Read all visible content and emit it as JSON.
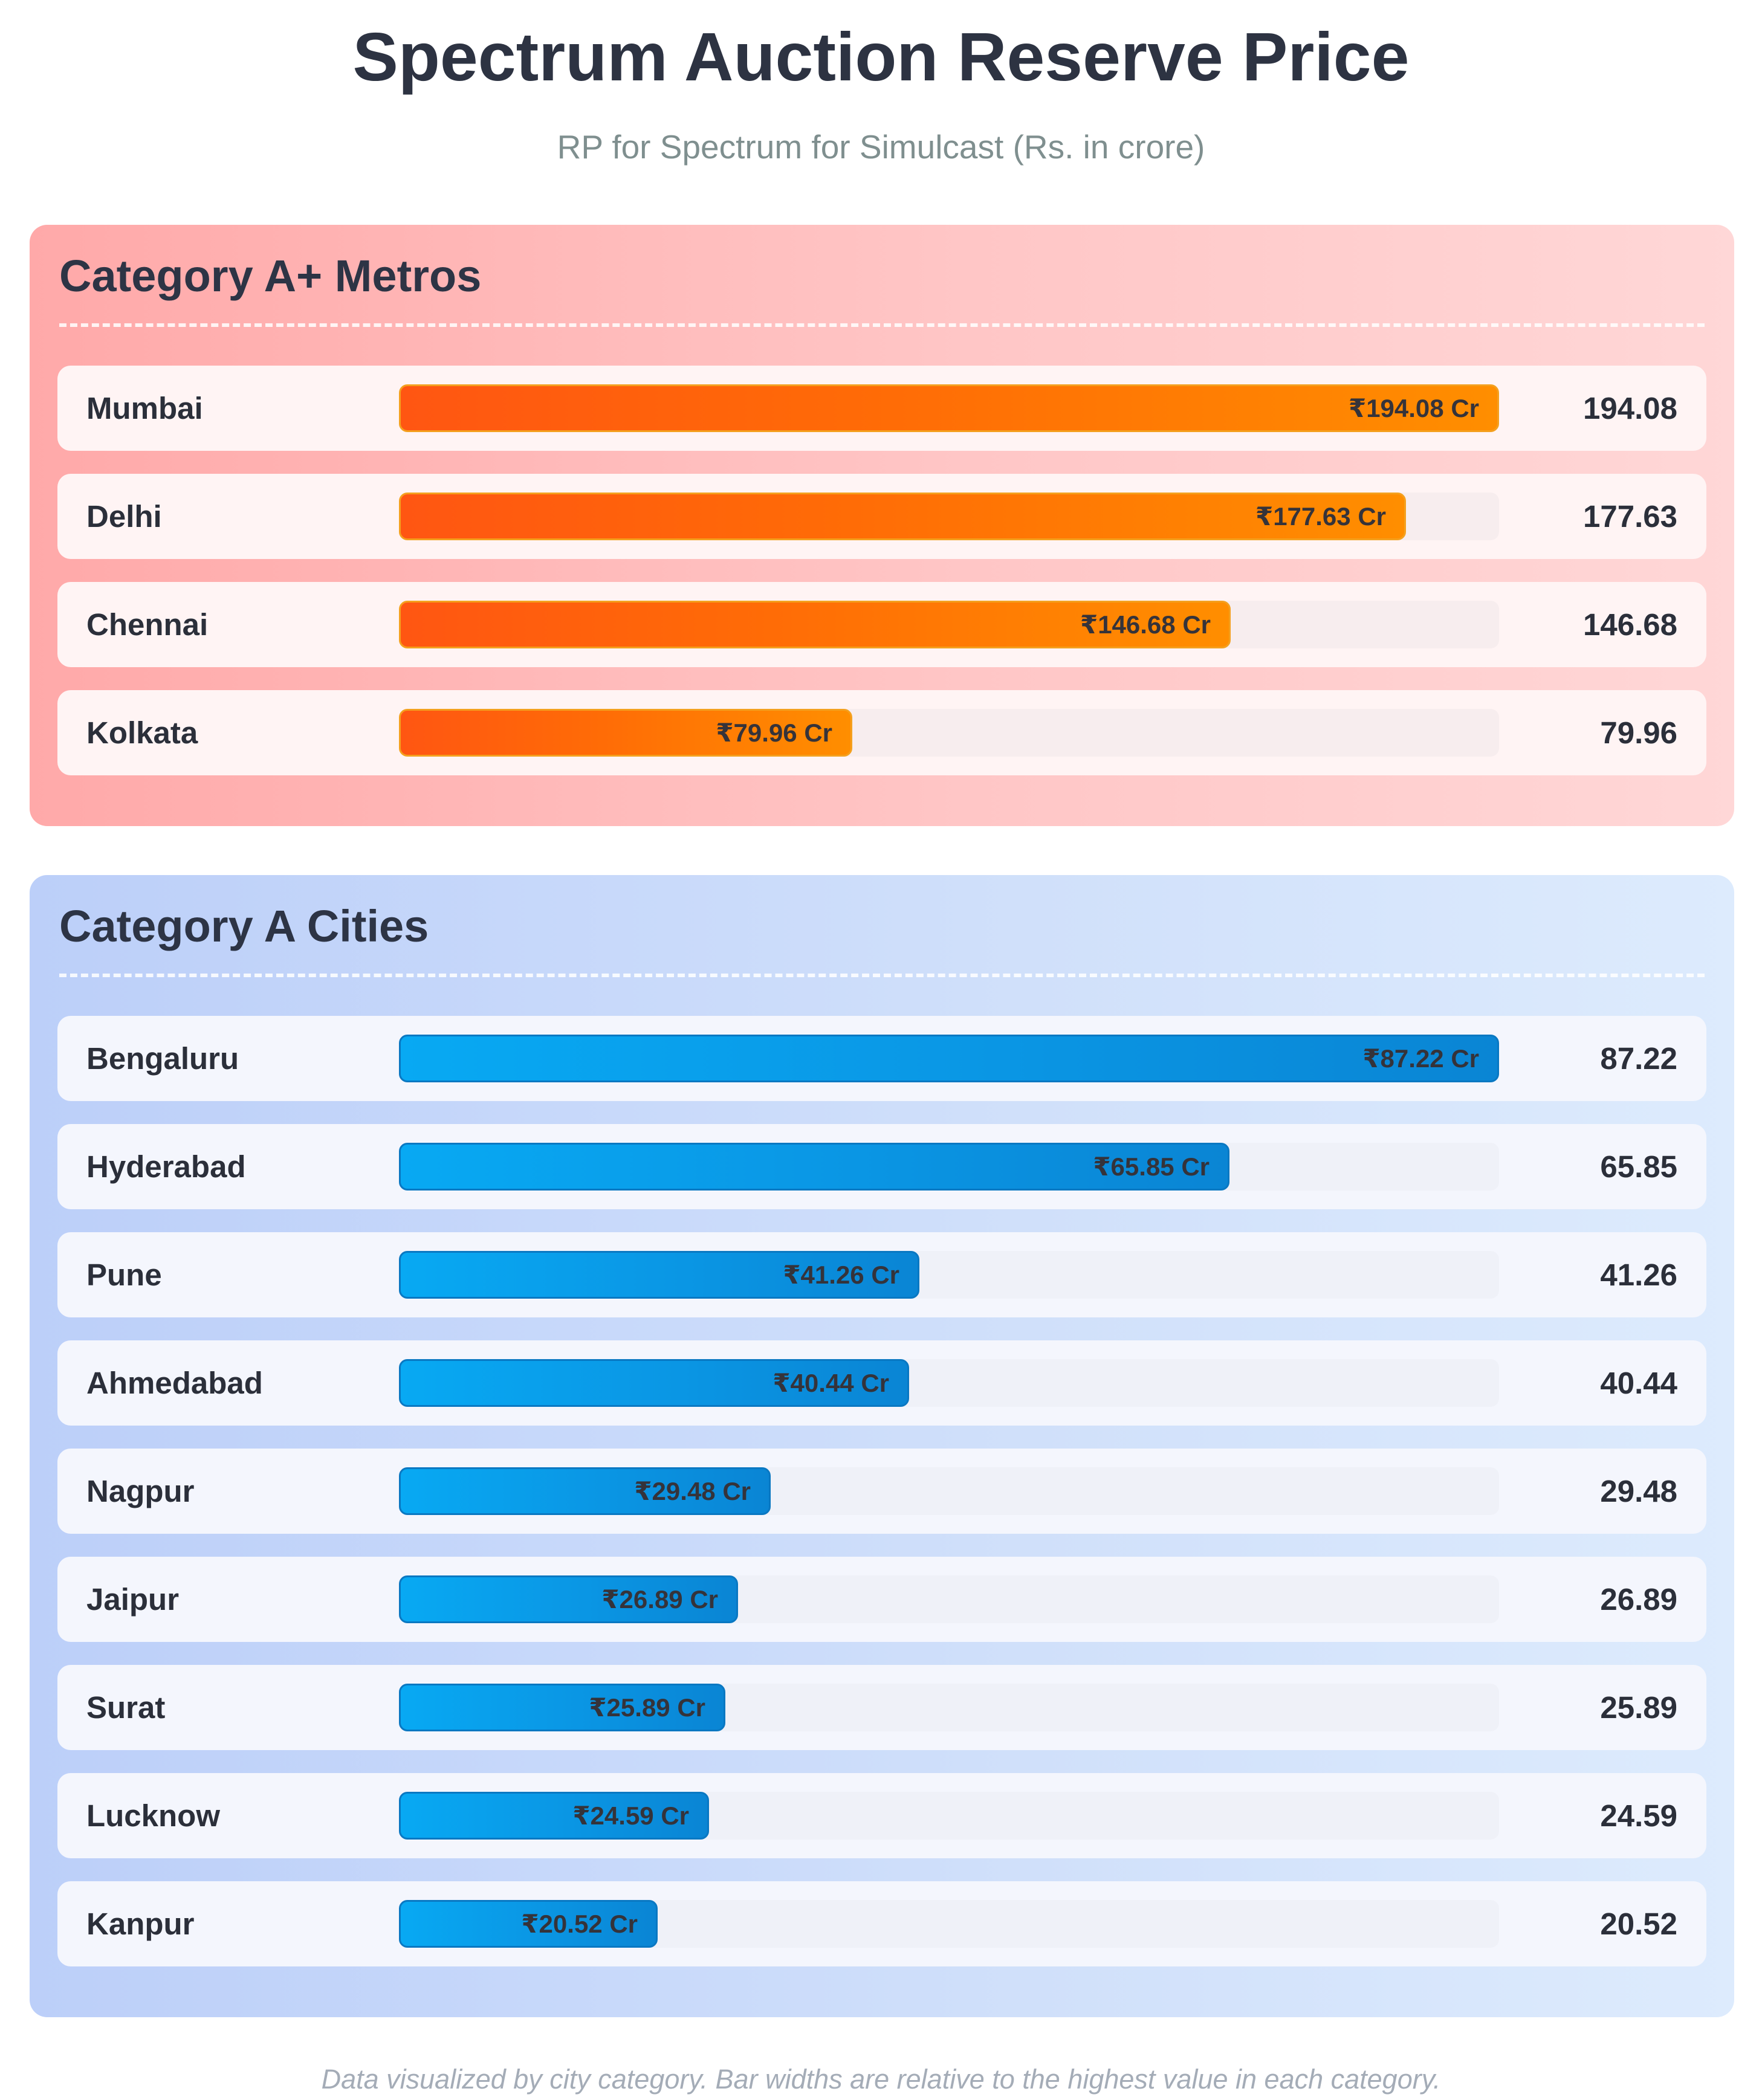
{
  "header": {
    "title": "Spectrum Auction Reserve Price",
    "subtitle": "RP for Spectrum for Simulcast (Rs. in crore)"
  },
  "footer": {
    "note": "Data visualized by city category. Bar widths are relative to the highest value in each category."
  },
  "colors": {
    "category_aplus_bar": "#ff6c06",
    "category_a_bar": "#0a96e4"
  },
  "chart_data": [
    {
      "type": "bar",
      "orientation": "horizontal",
      "title": "Category A+ Metros",
      "bar_label_prefix": "₹",
      "bar_label_suffix": " Cr",
      "scale": "relative to the highest value in the category",
      "categories": [
        "Mumbai",
        "Delhi",
        "Chennai",
        "Kolkata"
      ],
      "values": [
        194.08,
        177.63,
        146.68,
        79.96
      ],
      "value_labels": [
        "194.08",
        "177.63",
        "146.68",
        "79.96"
      ],
      "bar_labels": [
        "₹194.08 Cr",
        "₹177.63 Cr",
        "₹146.68 Cr",
        "₹79.96 Cr"
      ]
    },
    {
      "type": "bar",
      "orientation": "horizontal",
      "title": "Category A Cities",
      "bar_label_prefix": "₹",
      "bar_label_suffix": " Cr",
      "scale": "relative to the highest value in the category",
      "categories": [
        "Bengaluru",
        "Hyderabad",
        "Pune",
        "Ahmedabad",
        "Nagpur",
        "Jaipur",
        "Surat",
        "Lucknow",
        "Kanpur"
      ],
      "values": [
        87.22,
        65.85,
        41.26,
        40.44,
        29.48,
        26.89,
        25.89,
        24.59,
        20.52
      ],
      "value_labels": [
        "87.22",
        "65.85",
        "41.26",
        "40.44",
        "29.48",
        "26.89",
        "25.89",
        "24.59",
        "20.52"
      ],
      "bar_labels": [
        "₹87.22 Cr",
        "₹65.85 Cr",
        "₹41.26 Cr",
        "₹40.44 Cr",
        "₹29.48 Cr",
        "₹26.89 Cr",
        "₹25.89 Cr",
        "₹24.59 Cr",
        "₹20.52 Cr"
      ]
    }
  ]
}
